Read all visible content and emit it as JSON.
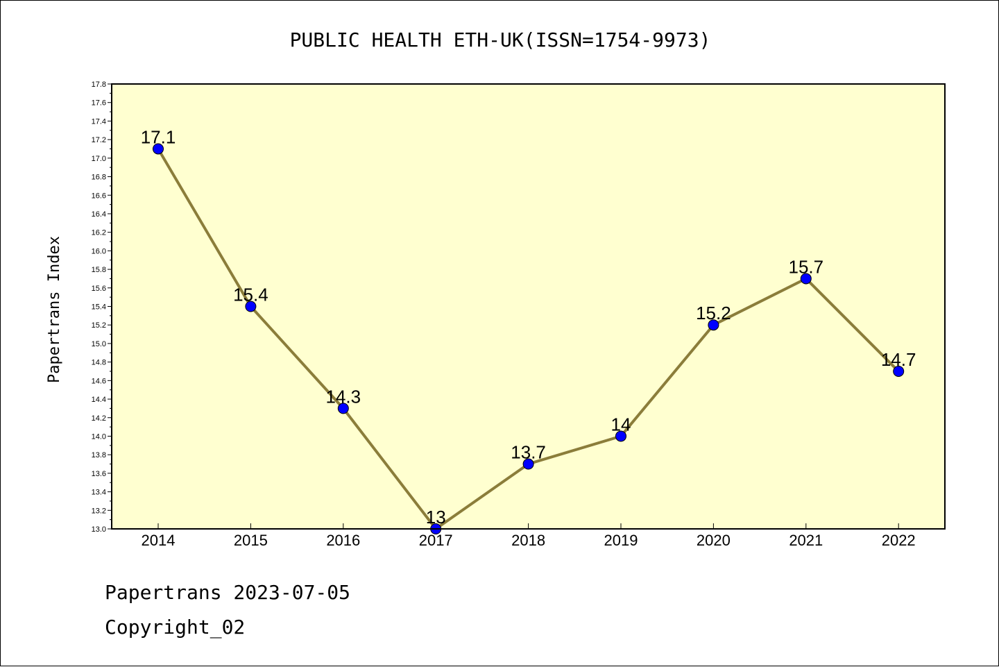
{
  "chart_data": {
    "type": "line",
    "title": "PUBLIC HEALTH ETH-UK(ISSN=1754-9973)",
    "ylabel": "Papertrans Index",
    "xlabel": "",
    "categories": [
      "2014",
      "2015",
      "2016",
      "2017",
      "2018",
      "2019",
      "2020",
      "2021",
      "2022"
    ],
    "values": [
      17.1,
      15.4,
      14.3,
      13.0,
      13.7,
      14.0,
      15.2,
      15.7,
      14.7
    ],
    "data_labels": [
      "17.1",
      "15.4",
      "14.3",
      "13",
      "13.7",
      "14",
      "15.2",
      "15.7",
      "14.7"
    ],
    "ylim": [
      13.0,
      17.8
    ],
    "yticks": [
      "13.0",
      "13.2",
      "13.4",
      "13.6",
      "13.8",
      "14.0",
      "14.2",
      "14.4",
      "14.6",
      "14.8",
      "15.0",
      "15.2",
      "15.4",
      "15.6",
      "15.8",
      "16.0",
      "16.2",
      "16.4",
      "16.6",
      "16.8",
      "17.0",
      "17.2",
      "17.4",
      "17.6",
      "17.8"
    ],
    "grid": false,
    "colors": {
      "plot_bg": "#ffffd0",
      "line": "#8b7d3a",
      "marker": "#0000ff"
    }
  },
  "footer": {
    "line1": "Papertrans 2023-07-05",
    "line2": "Copyright_02"
  }
}
